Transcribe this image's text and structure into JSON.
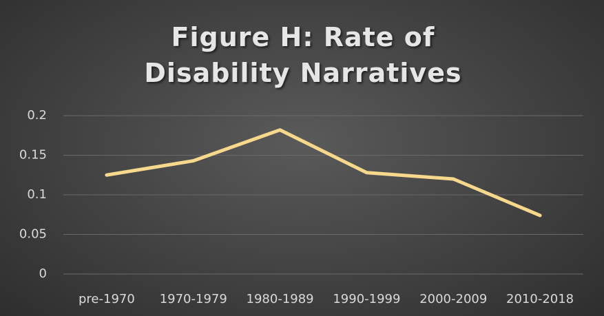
{
  "chart_data": {
    "type": "line",
    "title": "Figure H: Rate of Disability Narratives",
    "categories": [
      "pre-1970",
      "1970-1979",
      "1980-1989",
      "1990-1999",
      "2000-2009",
      "2010-2018"
    ],
    "values": [
      0.125,
      0.143,
      0.182,
      0.128,
      0.12,
      0.074
    ],
    "color": "#f7d88c",
    "ylim": [
      0,
      0.2
    ],
    "yticks": [
      0,
      0.05,
      0.1,
      0.15,
      0.2
    ],
    "grid": true
  }
}
